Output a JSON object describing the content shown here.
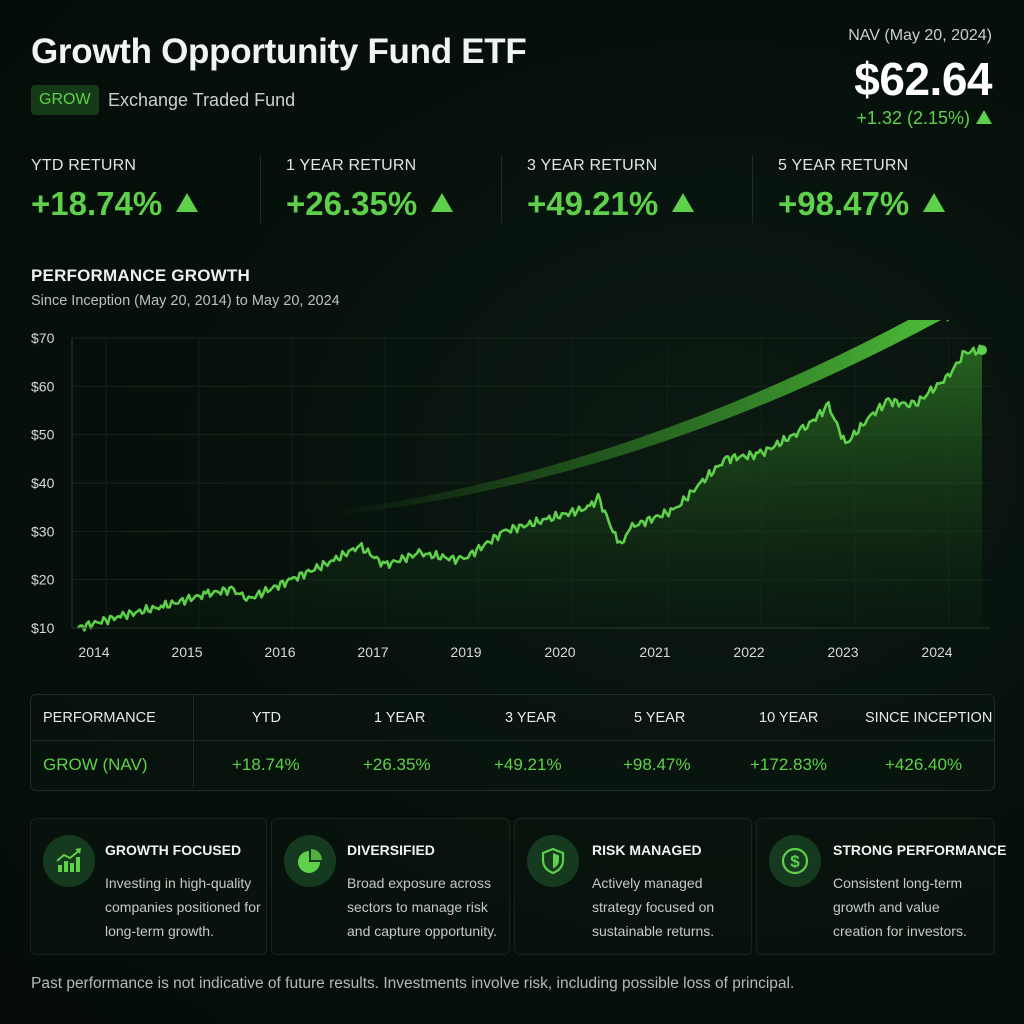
{
  "header": {
    "title": "Growth Opportunity Fund ETF",
    "ticker": "GROW",
    "fund_type": "Exchange Traded Fund",
    "nav_label": "NAV (May 20, 2024)",
    "nav_value": "$62.64",
    "nav_change": "+1.32 (2.15%)"
  },
  "returns": [
    {
      "label": "YTD RETURN",
      "value": "+18.74%"
    },
    {
      "label": "1 YEAR RETURN",
      "value": "+26.35%"
    },
    {
      "label": "3 YEAR RETURN",
      "value": "+49.21%"
    },
    {
      "label": "5 YEAR RETURN",
      "value": "+98.47%"
    }
  ],
  "growth_section": {
    "title": "PERFORMANCE GROWTH",
    "subtitle": "Since Inception (May 20, 2014) to May 20, 2024"
  },
  "chart_data": {
    "type": "area",
    "title": "PERFORMANCE GROWTH",
    "xlabel": "",
    "ylabel": "",
    "x_tick_labels": [
      "2014",
      "2015",
      "2016",
      "2017",
      "2019",
      "2020",
      "2021",
      "2022",
      "2023",
      "2024"
    ],
    "y_tick_labels": [
      "$10",
      "$20",
      "$30",
      "$40",
      "$50",
      "$60",
      "$70"
    ],
    "ylim": [
      10,
      70
    ],
    "grid": true,
    "legend": "none",
    "series": [
      {
        "x": [
          2014.0,
          2014.5,
          2015.0,
          2015.5,
          2015.8,
          2016.0,
          2016.5,
          2017.0,
          2017.3,
          2017.6,
          2018.0,
          2018.5,
          2019.0,
          2019.5,
          2020.0,
          2020.1,
          2020.35,
          2020.5,
          2021.0,
          2021.3,
          2021.6,
          2022.0,
          2022.5,
          2022.8,
          2023.0,
          2023.3,
          2023.5,
          2023.8,
          2024.0,
          2024.2,
          2024.4,
          2024.6
        ],
        "y": [
          10.0,
          12.5,
          14.5,
          17.0,
          18.0,
          16.0,
          20.0,
          24.0,
          27.0,
          23.0,
          25.5,
          24.0,
          30.0,
          32.5,
          35.0,
          37.0,
          27.0,
          31.0,
          34.5,
          40.0,
          45.0,
          46.0,
          51.0,
          56.0,
          48.0,
          54.0,
          57.0,
          56.0,
          59.0,
          62.0,
          67.0,
          67.5
        ]
      }
    ]
  },
  "performance_table": {
    "headers": [
      "PERFORMANCE",
      "YTD",
      "1 YEAR",
      "3 YEAR",
      "5 YEAR",
      "10 YEAR",
      "SINCE INCEPTION"
    ],
    "row": [
      "GROW (NAV)",
      "+18.74%",
      "+26.35%",
      "+49.21%",
      "+98.47%",
      "+172.83%",
      "+426.40%"
    ]
  },
  "features": [
    {
      "icon": "growth-chart-icon",
      "title": "GROWTH FOCUSED",
      "text": "Investing in high-quality companies positioned for long-term growth."
    },
    {
      "icon": "pie-chart-icon",
      "title": "DIVERSIFIED",
      "text": "Broad exposure across sectors to manage risk and capture opportunity."
    },
    {
      "icon": "shield-icon",
      "title": "RISK MANAGED",
      "text": "Actively managed strategy focused on sustainable returns."
    },
    {
      "icon": "dollar-icon",
      "title": "STRONG PERFORMANCE",
      "text": "Consistent long-term growth and value creation for investors."
    }
  ],
  "disclaimer": "Past performance is not indicative of future results. Investments involve risk, including possible loss of principal.",
  "colors": {
    "accent": "#5fd04a",
    "background": "#07100c",
    "ticker_bg": "#163a18"
  }
}
